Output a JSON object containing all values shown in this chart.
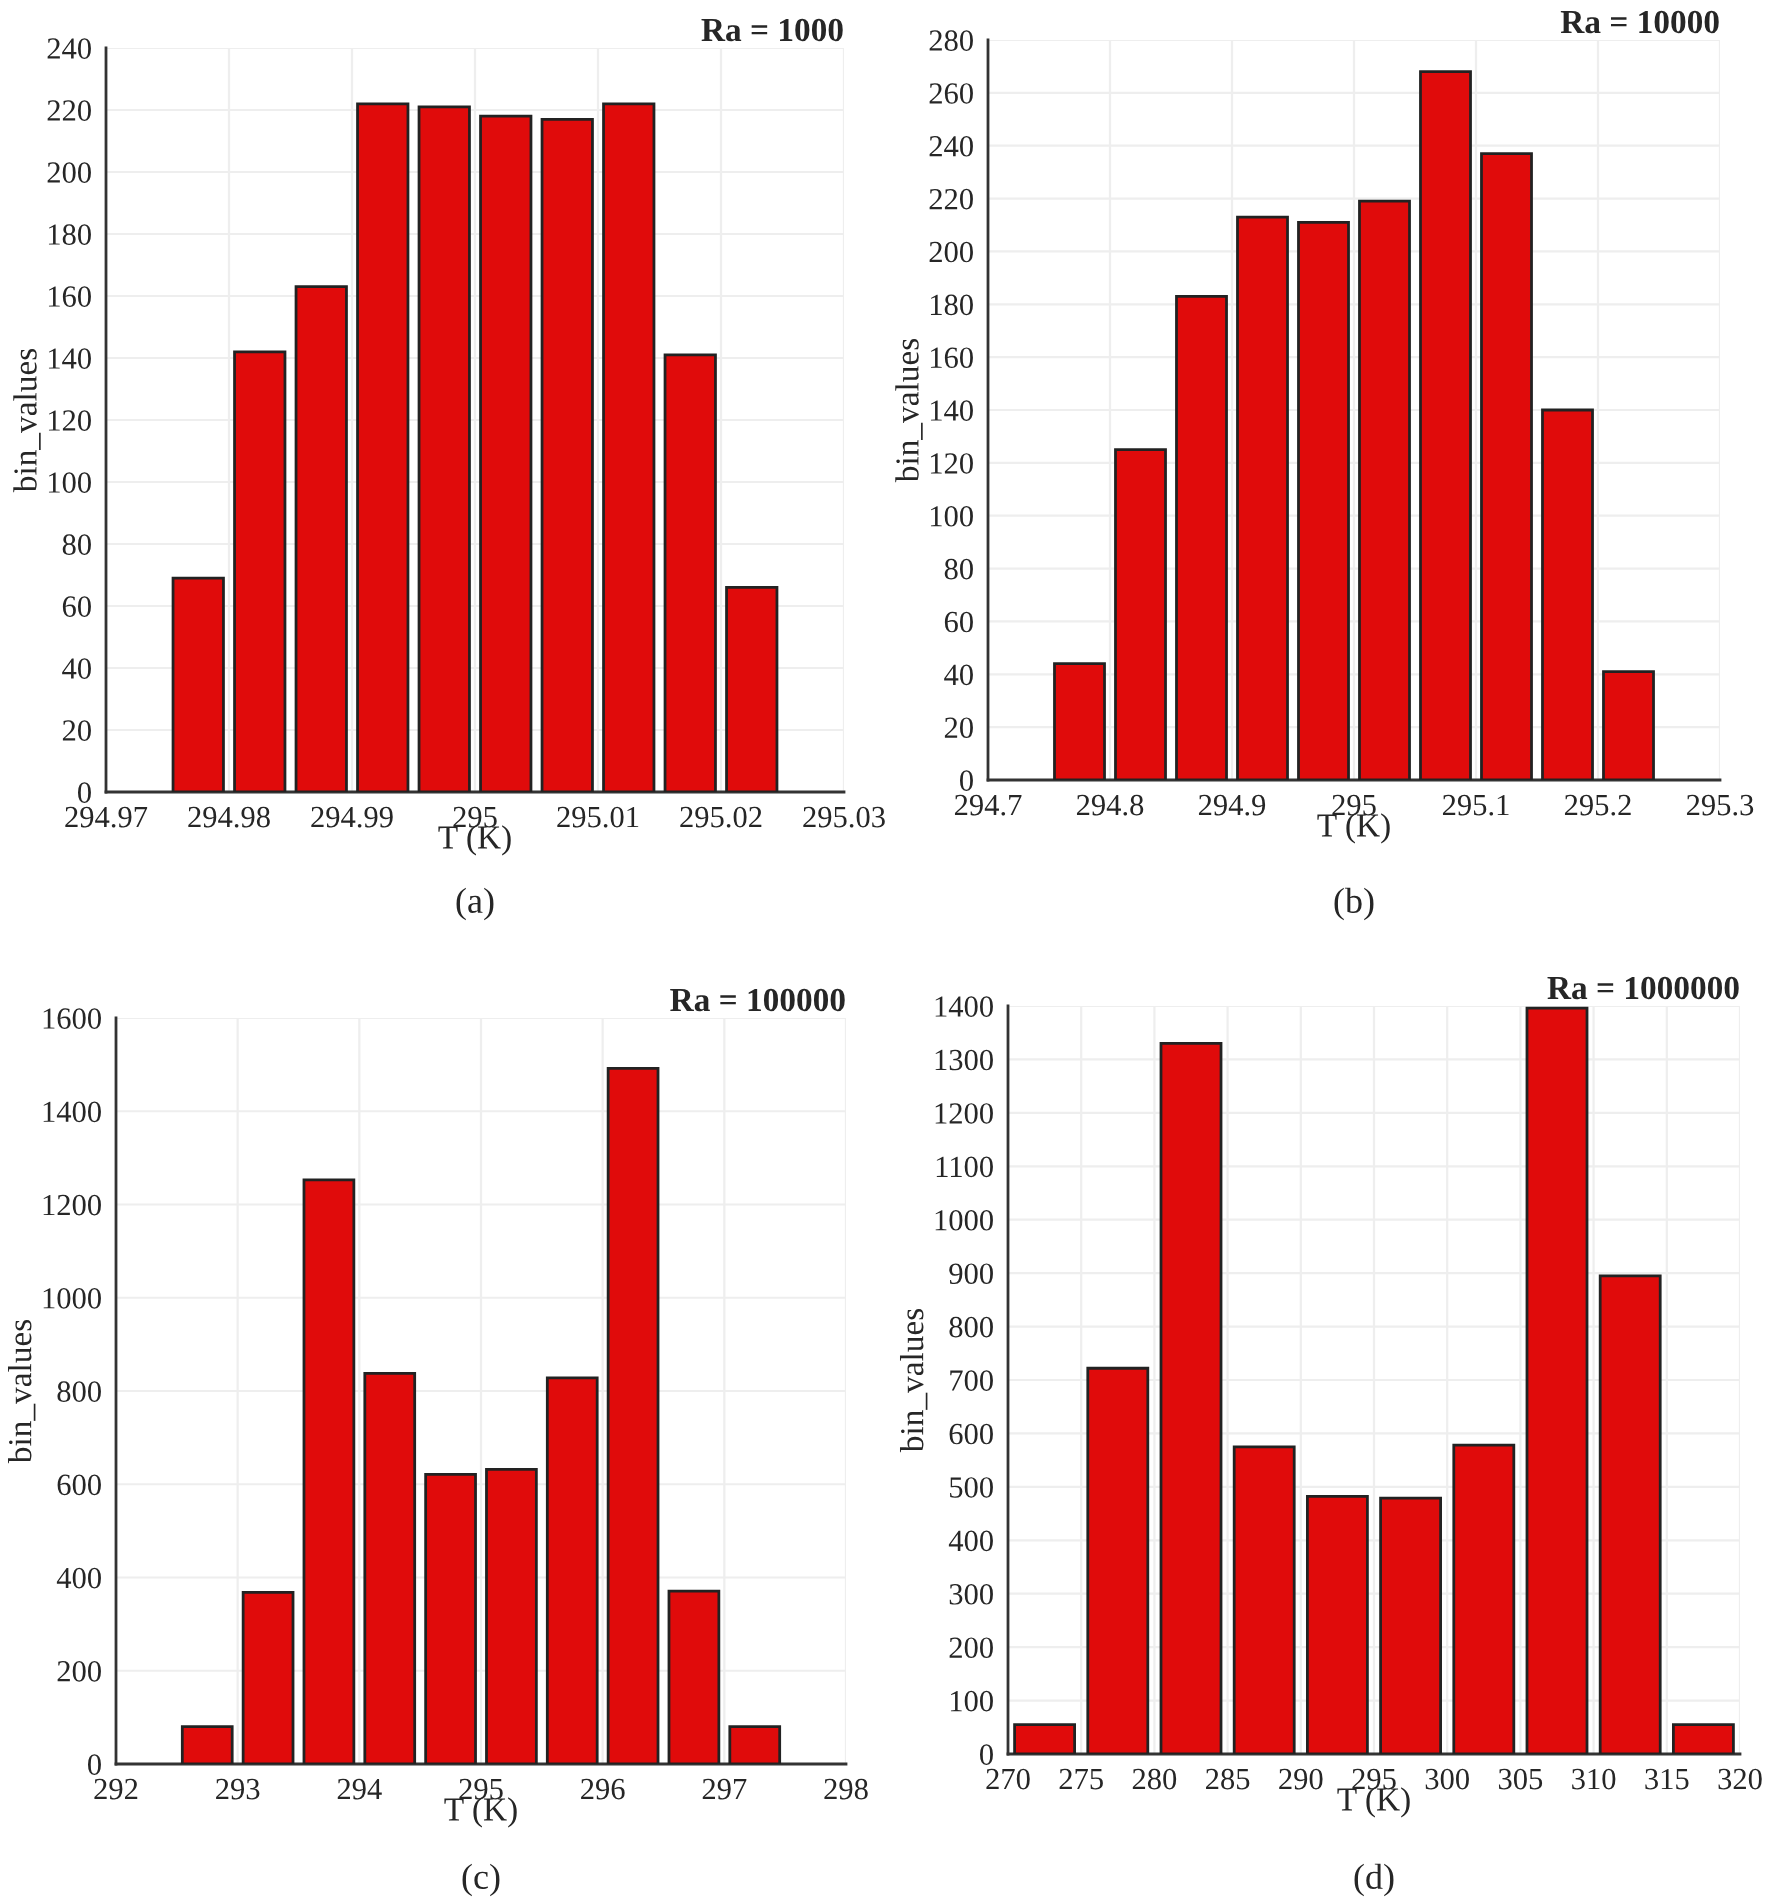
{
  "chart_data": [
    {
      "type": "histogram",
      "xlabel": "T (K)",
      "ylabel": "bin_values",
      "annotations": [
        "Ra = 1000",
        "(a)"
      ],
      "color": "#e00b0b",
      "bins": [
        294.975,
        294.98,
        294.985,
        294.99,
        294.995,
        295.0,
        295.005,
        295.01,
        295.015,
        295.02,
        295.025
      ],
      "values": [
        69,
        142,
        163,
        222,
        221,
        218,
        217,
        222,
        141,
        66
      ],
      "xlim": [
        294.97,
        295.03
      ],
      "xticks": [
        294.97,
        294.98,
        294.99,
        295,
        295.01,
        295.02,
        295.03
      ],
      "ylim": [
        0,
        240
      ],
      "yticks": [
        0,
        20,
        40,
        60,
        80,
        100,
        120,
        140,
        160,
        180,
        200,
        220,
        240
      ],
      "grid": true
    },
    {
      "type": "histogram",
      "xlabel": "T (K)",
      "ylabel": "bin_values",
      "annotations": [
        "Ra = 10000",
        "(b)"
      ],
      "color": "#e00b0b",
      "bins": [
        294.75,
        294.8,
        294.85,
        294.9,
        294.95,
        295.0,
        295.05,
        295.1,
        295.15,
        295.2,
        295.25
      ],
      "values": [
        44,
        125,
        183,
        213,
        211,
        219,
        268,
        237,
        140,
        41
      ],
      "xlim": [
        294.7,
        295.3
      ],
      "xticks": [
        294.7,
        294.8,
        294.9,
        295,
        295.1,
        295.2,
        295.3
      ],
      "ylim": [
        0,
        280
      ],
      "yticks": [
        0,
        20,
        40,
        60,
        80,
        100,
        120,
        140,
        160,
        180,
        200,
        220,
        240,
        260,
        280
      ],
      "grid": true
    },
    {
      "type": "histogram",
      "xlabel": "T (K)",
      "ylabel": "bin_values",
      "annotations": [
        "Ra = 100000",
        "(c)"
      ],
      "color": "#e00b0b",
      "bins": [
        292.5,
        293.0,
        293.5,
        294.0,
        294.5,
        295.0,
        295.5,
        296.0,
        296.5,
        297.0,
        297.5
      ],
      "values": [
        80,
        368,
        1253,
        838,
        621,
        632,
        828,
        1492,
        371,
        80
      ],
      "xlim": [
        292,
        298
      ],
      "xticks": [
        292,
        293,
        294,
        295,
        296,
        297,
        298
      ],
      "ylim": [
        0,
        1600
      ],
      "yticks": [
        0,
        200,
        400,
        600,
        800,
        1000,
        1200,
        1400,
        1600
      ],
      "grid": true
    },
    {
      "type": "histogram",
      "xlabel": "T (K)",
      "ylabel": "bin_values",
      "annotations": [
        "Ra = 1000000",
        "(d)"
      ],
      "color": "#e00b0b",
      "bins": [
        270,
        275,
        280,
        285,
        290,
        295,
        300,
        305,
        310,
        315,
        320
      ],
      "values": [
        55,
        722,
        1330,
        575,
        482,
        479,
        578,
        1396,
        895,
        55
      ],
      "xlim": [
        270,
        320
      ],
      "xticks": [
        270,
        275,
        280,
        285,
        290,
        295,
        300,
        305,
        310,
        315,
        320
      ],
      "ylim": [
        0,
        1400
      ],
      "yticks": [
        0,
        100,
        200,
        300,
        400,
        500,
        600,
        700,
        800,
        900,
        1000,
        1100,
        1200,
        1300,
        1400
      ],
      "grid": true
    }
  ]
}
